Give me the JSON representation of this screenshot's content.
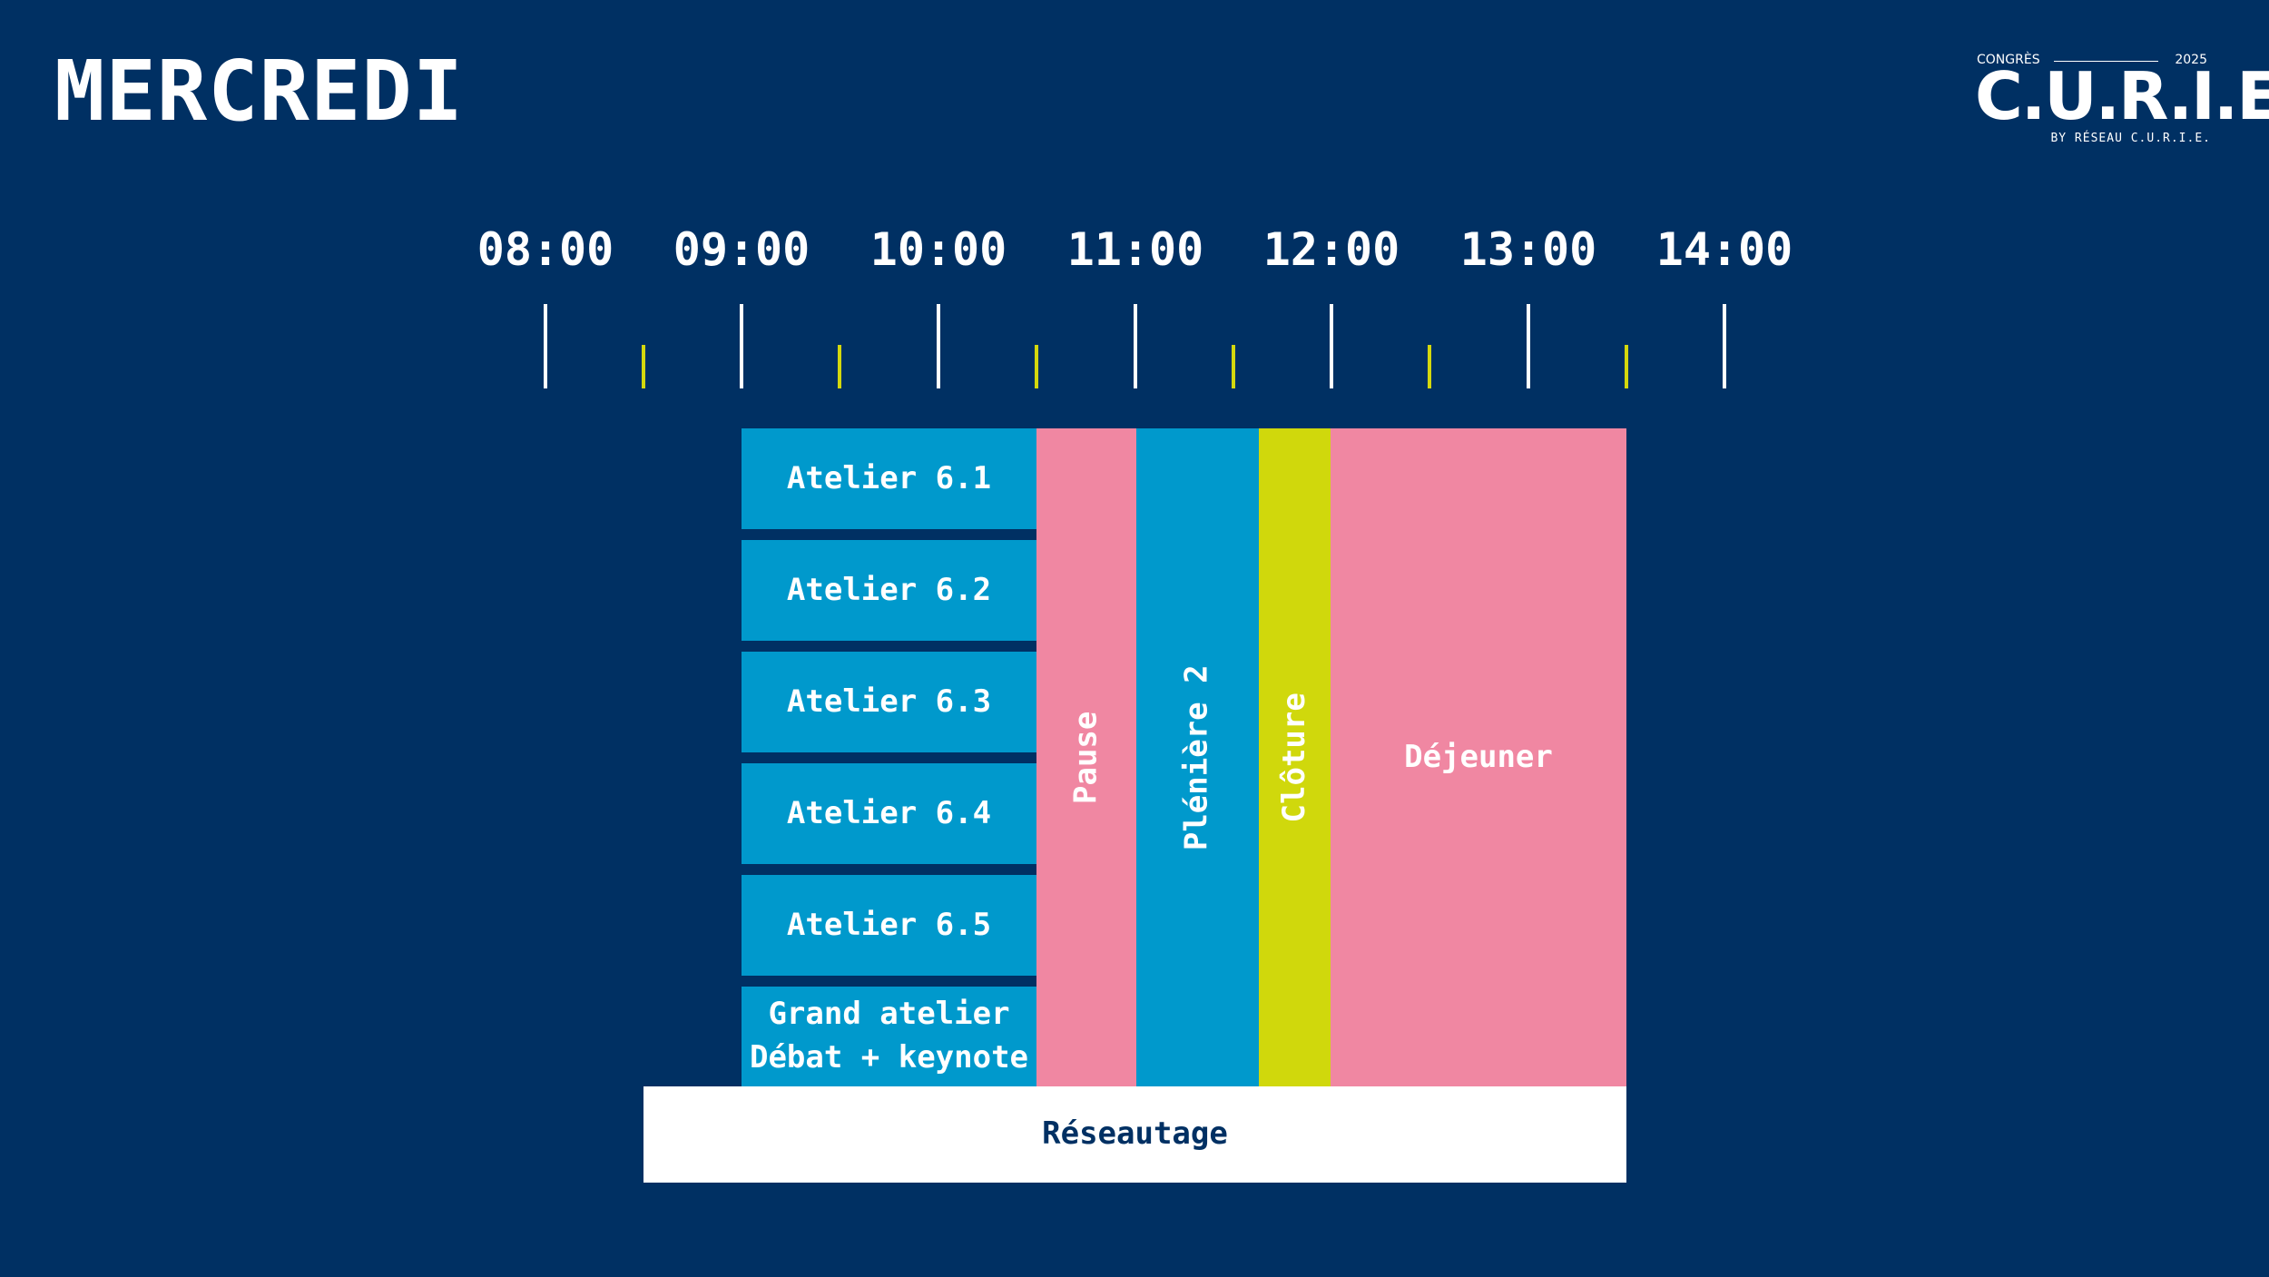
{
  "title": "MERCREDI",
  "logo": {
    "top_left": "CONGRÈS",
    "top_right": "2025",
    "name": "C.U.R.I.E.",
    "byline": "BY RÉSEAU C.U.R.I.E."
  },
  "timeline": {
    "hours": [
      "08:00",
      "09:00",
      "10:00",
      "11:00",
      "12:00",
      "13:00",
      "14:00"
    ]
  },
  "schedule": {
    "ateliers": [
      "Atelier 6.1",
      "Atelier 6.2",
      "Atelier 6.3",
      "Atelier 6.4",
      "Atelier 6.5"
    ],
    "grand_atelier": {
      "line1": "Grand atelier",
      "line2": "Débat + keynote"
    },
    "pause": "Pause",
    "pleniere": "Plénière 2",
    "cloture": "Clôture",
    "dejeuner": "Déjeuner",
    "reseautage": "Réseautage"
  },
  "colors": {
    "background": "#003063",
    "blue": "#0099cc",
    "pink": "#f087a2",
    "lime": "#d0d80c",
    "white": "#ffffff"
  }
}
